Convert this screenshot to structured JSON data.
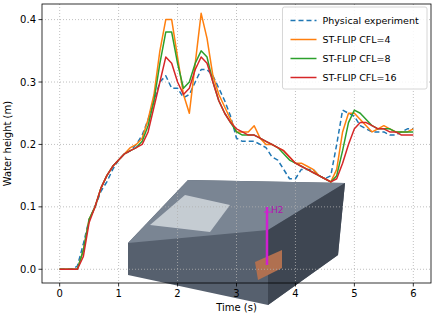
{
  "chart_data": {
    "type": "line",
    "xlabel": "Time (s)",
    "ylabel": "Water height (m)",
    "annotation": "H2",
    "x": [
      0,
      0.1,
      0.2,
      0.3,
      0.4,
      0.5,
      0.6,
      0.7,
      0.8,
      0.9,
      1.0,
      1.1,
      1.2,
      1.3,
      1.4,
      1.5,
      1.6,
      1.7,
      1.8,
      1.9,
      2.0,
      2.1,
      2.2,
      2.3,
      2.4,
      2.5,
      2.6,
      2.7,
      2.8,
      2.9,
      3.0,
      3.1,
      3.2,
      3.3,
      3.4,
      3.5,
      3.6,
      3.7,
      3.8,
      3.9,
      4.0,
      4.1,
      4.2,
      4.3,
      4.4,
      4.5,
      4.6,
      4.7,
      4.8,
      4.9,
      5.0,
      5.1,
      5.2,
      5.3,
      5.4,
      5.5,
      5.6,
      5.7,
      5.8,
      5.9,
      6.0
    ],
    "series": [
      {
        "name": "Physical experiment",
        "color": "#1f77b4",
        "line_style": "dashed",
        "values": [
          0,
          0,
          0,
          0.005,
          0.04,
          0.08,
          0.1,
          0.125,
          0.14,
          0.16,
          0.175,
          0.185,
          0.19,
          0.2,
          0.215,
          0.24,
          0.27,
          0.3,
          0.31,
          0.29,
          0.29,
          0.275,
          0.28,
          0.3,
          0.32,
          0.32,
          0.31,
          0.29,
          0.27,
          0.245,
          0.21,
          0.205,
          0.205,
          0.205,
          0.2,
          0.195,
          0.18,
          0.175,
          0.16,
          0.145,
          0.145,
          0.16,
          0.16,
          0.16,
          0.15,
          0.145,
          0.15,
          0.2,
          0.255,
          0.25,
          0.245,
          0.23,
          0.225,
          0.22,
          0.22,
          0.22,
          0.215,
          0.215,
          0.22,
          0.225,
          0.225
        ]
      },
      {
        "name": "ST-FLIP CFL=4",
        "color": "#ff7f0e",
        "line_style": "solid",
        "values": [
          0,
          0,
          0,
          0,
          0.03,
          0.08,
          0.1,
          0.13,
          0.15,
          0.165,
          0.175,
          0.185,
          0.195,
          0.2,
          0.21,
          0.24,
          0.28,
          0.35,
          0.4,
          0.4,
          0.34,
          0.28,
          0.25,
          0.33,
          0.41,
          0.37,
          0.31,
          0.28,
          0.26,
          0.24,
          0.22,
          0.22,
          0.22,
          0.23,
          0.21,
          0.2,
          0.2,
          0.195,
          0.19,
          0.18,
          0.17,
          0.17,
          0.165,
          0.16,
          0.15,
          0.145,
          0.14,
          0.16,
          0.22,
          0.25,
          0.25,
          0.24,
          0.23,
          0.22,
          0.225,
          0.23,
          0.225,
          0.22,
          0.22,
          0.22,
          0.225
        ]
      },
      {
        "name": "ST-FLIP CFL=8",
        "color": "#2ca02c",
        "line_style": "solid",
        "values": [
          0,
          0,
          0,
          0,
          0.03,
          0.08,
          0.1,
          0.13,
          0.15,
          0.165,
          0.175,
          0.185,
          0.19,
          0.195,
          0.205,
          0.23,
          0.27,
          0.33,
          0.38,
          0.38,
          0.33,
          0.29,
          0.3,
          0.33,
          0.35,
          0.34,
          0.3,
          0.27,
          0.25,
          0.235,
          0.22,
          0.215,
          0.215,
          0.215,
          0.21,
          0.205,
          0.2,
          0.195,
          0.185,
          0.175,
          0.17,
          0.165,
          0.16,
          0.155,
          0.15,
          0.145,
          0.14,
          0.15,
          0.19,
          0.235,
          0.255,
          0.25,
          0.24,
          0.23,
          0.225,
          0.225,
          0.225,
          0.22,
          0.22,
          0.22,
          0.22
        ]
      },
      {
        "name": "ST-FLIP CFL=16",
        "color": "#d62728",
        "line_style": "solid",
        "values": [
          0,
          0,
          0,
          0,
          0.02,
          0.075,
          0.1,
          0.13,
          0.15,
          0.165,
          0.175,
          0.185,
          0.19,
          0.195,
          0.2,
          0.22,
          0.26,
          0.3,
          0.34,
          0.33,
          0.3,
          0.28,
          0.29,
          0.32,
          0.34,
          0.33,
          0.3,
          0.27,
          0.25,
          0.235,
          0.225,
          0.22,
          0.215,
          0.215,
          0.21,
          0.205,
          0.2,
          0.195,
          0.19,
          0.18,
          0.17,
          0.165,
          0.16,
          0.155,
          0.15,
          0.145,
          0.14,
          0.145,
          0.17,
          0.2,
          0.225,
          0.235,
          0.235,
          0.23,
          0.225,
          0.225,
          0.22,
          0.22,
          0.215,
          0.215,
          0.215
        ]
      }
    ],
    "xlim": [
      -0.3,
      6.3
    ],
    "ylim": [
      -0.022,
      0.425
    ],
    "xticks": [
      0,
      1,
      2,
      3,
      4,
      5,
      6
    ],
    "yticks": [
      {
        "value": 0,
        "label": "0.0"
      },
      0.1,
      0.2,
      0.3,
      0.4
    ],
    "grid": true,
    "legend": "upper right"
  }
}
